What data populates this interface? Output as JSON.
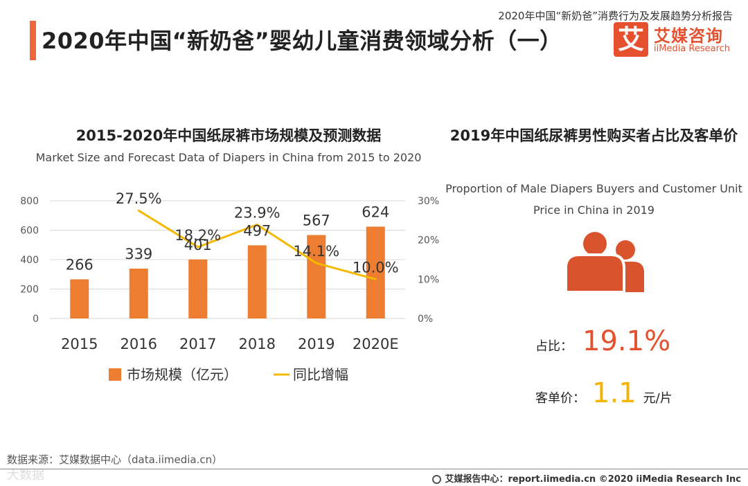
{
  "header": {
    "report_title": "2020年中国“新奶爸”消费行为及发展趋势分析报告",
    "page_title": "2020年中国“新奶爸”婴幼儿童消费领域分析（一）",
    "logo_mark": "艾",
    "logo_cn": "艾媒咨询",
    "logo_en": "iiMedia Research"
  },
  "left_chart": {
    "title_cn": "2015-2020年中国纸尿裤市场规模及预测数据",
    "title_en": "Market Size and Forecast Data of Diapers in China from 2015 to 2020"
  },
  "chart_data": {
    "type": "bar",
    "categories": [
      "2015",
      "2016",
      "2017",
      "2018",
      "2019",
      "2020E"
    ],
    "series": [
      {
        "name": "市场规模（亿元）",
        "type": "bar",
        "axis": "left",
        "color": "#ed7d31",
        "values": [
          266,
          339,
          401,
          497,
          567,
          624
        ],
        "labels": [
          "266",
          "339",
          "401",
          "497",
          "567",
          "624"
        ]
      },
      {
        "name": "同比增幅",
        "type": "line",
        "axis": "right",
        "color": "#f5b800",
        "values": [
          null,
          27.5,
          18.2,
          23.9,
          14.1,
          10.0
        ],
        "labels": [
          "",
          "27.5%",
          "18.2%",
          "23.9%",
          "14.1%",
          "10.0%"
        ]
      }
    ],
    "y_left": {
      "min": 0,
      "max": 800,
      "ticks": [
        "0",
        "200",
        "400",
        "600",
        "800"
      ]
    },
    "y_right": {
      "min": 0,
      "max": 30,
      "ticks": [
        "0%",
        "10%",
        "20%",
        "30%"
      ]
    },
    "grid": true,
    "legend_position": "bottom"
  },
  "right_panel": {
    "title_cn": "2019年中国纸尿裤男性购买者占比及客单价",
    "title_en": "Proportion of Male Diapers Buyers and Customer Unit Price in China in 2019",
    "icon": "people-icon",
    "share_label": "占比：",
    "share_value": "19.1%",
    "price_label": "客单价：",
    "price_value": "1.1",
    "price_unit": "元/片"
  },
  "footer": {
    "source": "数据来源：艾媒数据中心（data.iimedia.cn）",
    "center_text": "艾媒报告中心：report.iimedia.cn  ©2020  iiMedia Research  Inc",
    "watermark": "大数据"
  },
  "colors": {
    "accent": "#f0663a",
    "brand": "#e5502f",
    "bar": "#ed7d31",
    "line": "#f5b800",
    "grid": "#d9d9d9"
  }
}
